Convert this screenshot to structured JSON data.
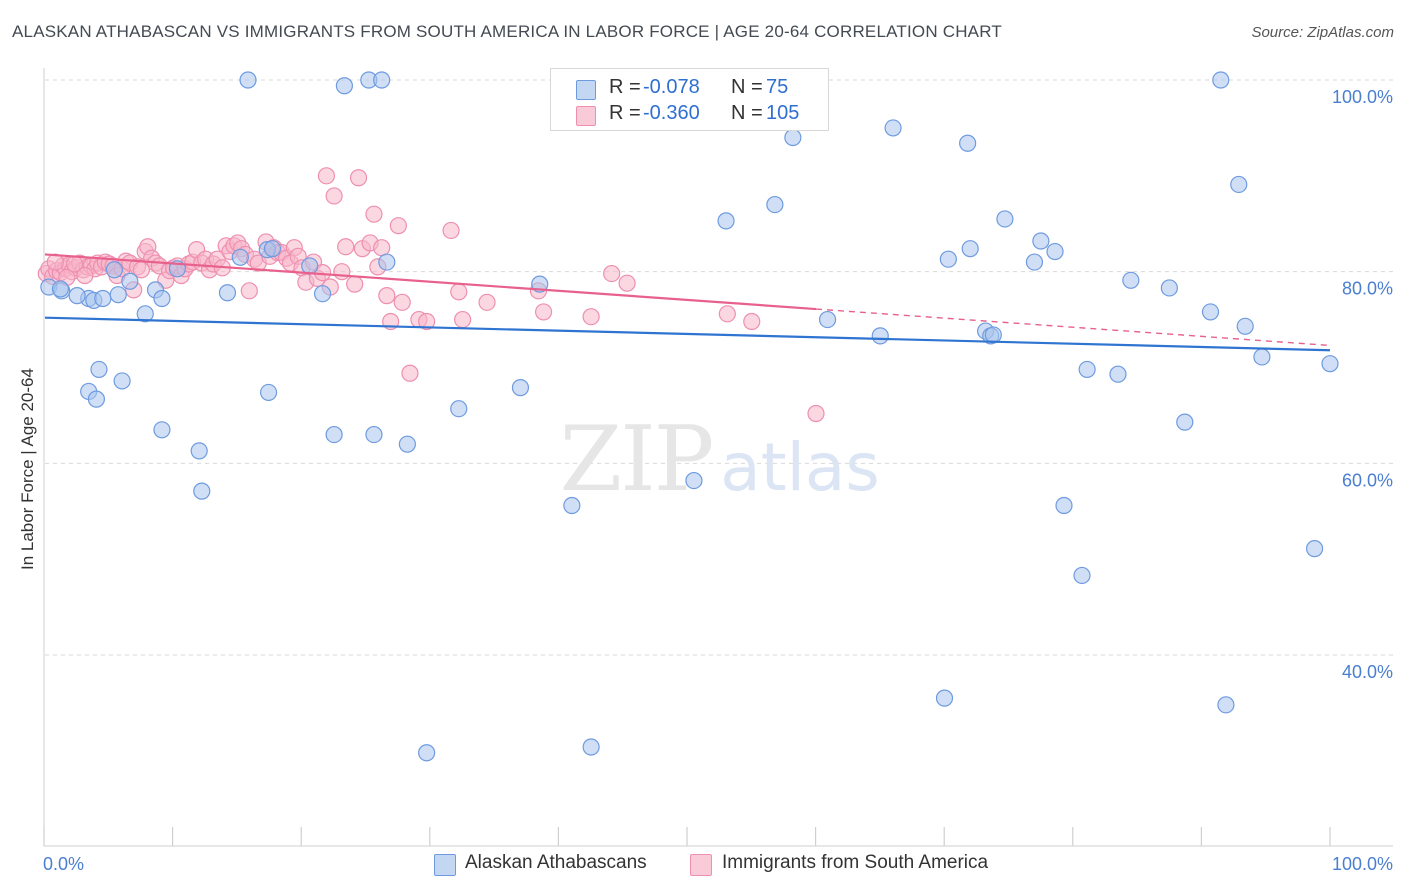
{
  "header": {
    "title": "ALASKAN ATHABASCAN VS IMMIGRANTS FROM SOUTH AMERICA IN LABOR FORCE | AGE 20-64 CORRELATION CHART",
    "source": "Source: ZipAtlas.com"
  },
  "watermark": {
    "zip": "ZIP",
    "atlas": "atlas"
  },
  "legend_top": [
    {
      "r_label": "R =",
      "r_value": "-0.078",
      "n_label": "N =",
      "n_value": "75"
    },
    {
      "r_label": "R =",
      "r_value": "-0.360",
      "n_label": "N =",
      "n_value": "105"
    }
  ],
  "legend_bottom": [
    "Alaskan Athabascans",
    "Immigrants from South America"
  ],
  "colors": {
    "blue_fill": "#a9c4ec",
    "blue_stroke": "#6e9be0",
    "blue_line": "#2f74d0",
    "pink_fill": "#f7b6cb",
    "pink_stroke": "#ee8fb0",
    "pink_line": "#e8608c",
    "tick_label": "#4a7fd0",
    "grid": "#d9d9d9"
  },
  "chart_data": {
    "type": "scatter",
    "title": "ALASKAN ATHABASCAN VS IMMIGRANTS FROM SOUTH AMERICA IN LABOR FORCE | AGE 20-64 CORRELATION CHART",
    "xlabel": "",
    "ylabel": "In Labor Force | Age 20-64",
    "xlim": [
      0,
      100
    ],
    "ylim": [
      20,
      102
    ],
    "x_tick_labels": [
      "0.0%",
      "100.0%"
    ],
    "y_ticks": [
      40,
      60,
      80,
      100
    ],
    "y_tick_labels": [
      "40.0%",
      "60.0%",
      "80.0%",
      "100.0%"
    ],
    "grid": "horizontal dashed",
    "series": [
      {
        "name": "Alaskan Athabascans",
        "r": -0.078,
        "n": 75,
        "trend": {
          "x": [
            0,
            100
          ],
          "y": [
            75.2,
            71.8
          ],
          "dashed_from": null
        },
        "points": [
          [
            0.3,
            78.4
          ],
          [
            1.3,
            78.0
          ],
          [
            3.4,
            67.5
          ],
          [
            3.4,
            77.2
          ],
          [
            3.8,
            77.0
          ],
          [
            4.0,
            66.7
          ],
          [
            4.2,
            69.8
          ],
          [
            4.5,
            77.2
          ],
          [
            5.4,
            80.2
          ],
          [
            5.7,
            77.6
          ],
          [
            6.0,
            68.6
          ],
          [
            6.6,
            79.0
          ],
          [
            7.8,
            75.6
          ],
          [
            8.6,
            78.1
          ],
          [
            9.1,
            63.5
          ],
          [
            9.1,
            77.2
          ],
          [
            10.3,
            80.3
          ],
          [
            12.0,
            61.3
          ],
          [
            12.2,
            57.1
          ],
          [
            14.2,
            77.8
          ],
          [
            15.2,
            81.5
          ],
          [
            15.8,
            100.0
          ],
          [
            17.3,
            82.3
          ],
          [
            17.4,
            67.4
          ],
          [
            17.7,
            82.4
          ],
          [
            20.6,
            80.6
          ],
          [
            21.6,
            77.7
          ],
          [
            22.5,
            63.0
          ],
          [
            23.3,
            99.4
          ],
          [
            25.2,
            100.0
          ],
          [
            25.6,
            63.0
          ],
          [
            26.2,
            100.0
          ],
          [
            26.6,
            81.0
          ],
          [
            28.2,
            62.0
          ],
          [
            32.2,
            65.7
          ],
          [
            37.0,
            67.9
          ],
          [
            38.5,
            78.7
          ],
          [
            41.0,
            55.6
          ],
          [
            42.5,
            30.4
          ],
          [
            50.5,
            58.2
          ],
          [
            53.0,
            85.3
          ],
          [
            56.8,
            87.0
          ],
          [
            58.2,
            94.0
          ],
          [
            60.9,
            75.0
          ],
          [
            65.0,
            73.3
          ],
          [
            66.0,
            95.0
          ],
          [
            70.0,
            35.5
          ],
          [
            70.3,
            81.3
          ],
          [
            71.8,
            93.4
          ],
          [
            72.0,
            82.4
          ],
          [
            73.2,
            73.8
          ],
          [
            73.6,
            73.3
          ],
          [
            73.8,
            73.4
          ],
          [
            74.7,
            85.5
          ],
          [
            77.0,
            81.0
          ],
          [
            77.5,
            83.2
          ],
          [
            78.6,
            82.1
          ],
          [
            79.3,
            55.6
          ],
          [
            80.7,
            48.3
          ],
          [
            81.1,
            69.8
          ],
          [
            83.5,
            69.3
          ],
          [
            84.5,
            79.1
          ],
          [
            87.5,
            78.3
          ],
          [
            88.7,
            64.3
          ],
          [
            90.7,
            75.8
          ],
          [
            91.5,
            100.0
          ],
          [
            91.9,
            34.8
          ],
          [
            92.9,
            89.1
          ],
          [
            93.4,
            74.3
          ],
          [
            94.7,
            71.1
          ],
          [
            98.8,
            51.1
          ],
          [
            100.0,
            70.4
          ],
          [
            29.7,
            29.8
          ],
          [
            1.2,
            78.2
          ],
          [
            2.5,
            77.5
          ]
        ]
      },
      {
        "name": "Immigrants from South America",
        "r": -0.36,
        "n": 105,
        "trend": {
          "x": [
            0,
            100
          ],
          "y": [
            81.8,
            72.3
          ],
          "dashed_from": 60
        },
        "points": [
          [
            0.1,
            79.8
          ],
          [
            0.3,
            80.3
          ],
          [
            0.6,
            79.5
          ],
          [
            0.9,
            80.1
          ],
          [
            1.2,
            79.9
          ],
          [
            1.4,
            80.6
          ],
          [
            1.6,
            80.3
          ],
          [
            1.9,
            80.7
          ],
          [
            2.1,
            80.0
          ],
          [
            2.4,
            80.4
          ],
          [
            2.7,
            80.9
          ],
          [
            3.0,
            80.2
          ],
          [
            3.3,
            80.5
          ],
          [
            3.6,
            80.6
          ],
          [
            3.9,
            80.3
          ],
          [
            4.1,
            80.9
          ],
          [
            4.4,
            80.5
          ],
          [
            4.7,
            81.0
          ],
          [
            5.0,
            80.8
          ],
          [
            5.3,
            80.6
          ],
          [
            5.6,
            79.6
          ],
          [
            6.0,
            80.3
          ],
          [
            6.3,
            81.1
          ],
          [
            6.6,
            80.9
          ],
          [
            6.9,
            78.1
          ],
          [
            7.2,
            80.5
          ],
          [
            7.5,
            80.2
          ],
          [
            7.8,
            82.1
          ],
          [
            8.0,
            82.6
          ],
          [
            8.3,
            81.4
          ],
          [
            8.6,
            80.9
          ],
          [
            8.9,
            80.6
          ],
          [
            9.4,
            79.1
          ],
          [
            9.7,
            80.1
          ],
          [
            10.0,
            80.4
          ],
          [
            10.3,
            80.6
          ],
          [
            10.6,
            79.6
          ],
          [
            10.9,
            80.3
          ],
          [
            11.2,
            80.8
          ],
          [
            11.5,
            81.0
          ],
          [
            11.8,
            82.3
          ],
          [
            12.2,
            80.9
          ],
          [
            12.5,
            81.3
          ],
          [
            12.8,
            80.2
          ],
          [
            13.1,
            80.8
          ],
          [
            13.4,
            81.3
          ],
          [
            13.8,
            80.4
          ],
          [
            14.1,
            82.7
          ],
          [
            14.4,
            82.1
          ],
          [
            14.7,
            82.7
          ],
          [
            15.0,
            83.0
          ],
          [
            15.3,
            82.4
          ],
          [
            15.6,
            81.8
          ],
          [
            15.9,
            78.0
          ],
          [
            16.3,
            81.3
          ],
          [
            16.6,
            80.9
          ],
          [
            17.2,
            83.1
          ],
          [
            17.5,
            81.6
          ],
          [
            17.8,
            82.5
          ],
          [
            18.1,
            82.0
          ],
          [
            18.4,
            82.0
          ],
          [
            18.8,
            81.4
          ],
          [
            19.1,
            80.9
          ],
          [
            19.4,
            82.5
          ],
          [
            19.7,
            81.6
          ],
          [
            20.0,
            80.4
          ],
          [
            20.3,
            78.9
          ],
          [
            20.9,
            81.0
          ],
          [
            21.2,
            79.3
          ],
          [
            21.6,
            79.9
          ],
          [
            21.9,
            90.0
          ],
          [
            22.2,
            78.4
          ],
          [
            22.5,
            87.9
          ],
          [
            23.1,
            80.0
          ],
          [
            23.4,
            82.6
          ],
          [
            24.1,
            78.7
          ],
          [
            24.4,
            89.8
          ],
          [
            24.7,
            82.4
          ],
          [
            25.3,
            83.0
          ],
          [
            25.6,
            86.0
          ],
          [
            25.9,
            80.5
          ],
          [
            26.2,
            82.5
          ],
          [
            26.6,
            77.5
          ],
          [
            26.9,
            74.8
          ],
          [
            27.5,
            84.8
          ],
          [
            27.8,
            76.8
          ],
          [
            28.4,
            69.4
          ],
          [
            29.1,
            75.0
          ],
          [
            29.7,
            74.8
          ],
          [
            31.6,
            84.3
          ],
          [
            32.2,
            77.9
          ],
          [
            32.5,
            75.0
          ],
          [
            34.4,
            76.8
          ],
          [
            38.4,
            78.0
          ],
          [
            38.8,
            75.8
          ],
          [
            42.5,
            75.3
          ],
          [
            44.1,
            79.8
          ],
          [
            45.3,
            78.8
          ],
          [
            53.1,
            75.6
          ],
          [
            55.0,
            74.8
          ],
          [
            60.0,
            65.2
          ],
          [
            0.8,
            81.0
          ],
          [
            1.7,
            79.4
          ],
          [
            2.3,
            80.8
          ],
          [
            3.1,
            79.6
          ]
        ]
      }
    ]
  }
}
